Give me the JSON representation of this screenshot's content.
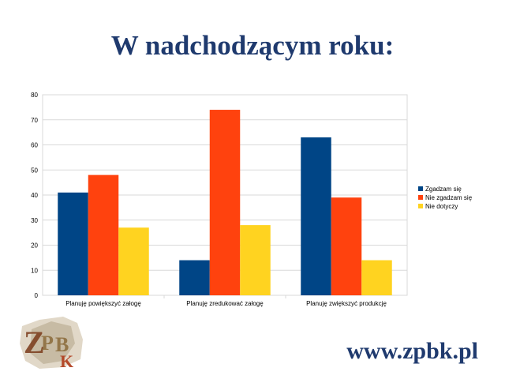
{
  "slide": {
    "title": "W nadchodzącym roku:",
    "url": "www.zpbk.pl",
    "logo_text": "ZPBK"
  },
  "colors": {
    "title": "#1f3a6e",
    "series": [
      "#004586",
      "#ff420e",
      "#ffd320"
    ],
    "grid": "#d9d9d9"
  },
  "chart_data": {
    "type": "bar",
    "title": "",
    "xlabel": "",
    "ylabel": "",
    "categories": [
      "Planuję powiększyć załogę",
      "Planuję zredukować załogę",
      "Planuję zwiększyć produkcję"
    ],
    "series": [
      {
        "name": "Zgadzam się",
        "values": [
          41,
          14,
          63
        ]
      },
      {
        "name": "Nie zgadzam się",
        "values": [
          48,
          74,
          39
        ]
      },
      {
        "name": "Nie dotyczy",
        "values": [
          27,
          28,
          14
        ]
      }
    ],
    "ylim": [
      0,
      80
    ],
    "yticks": [
      0,
      10,
      20,
      30,
      40,
      50,
      60,
      70,
      80
    ],
    "grid": true,
    "legend": "right"
  }
}
